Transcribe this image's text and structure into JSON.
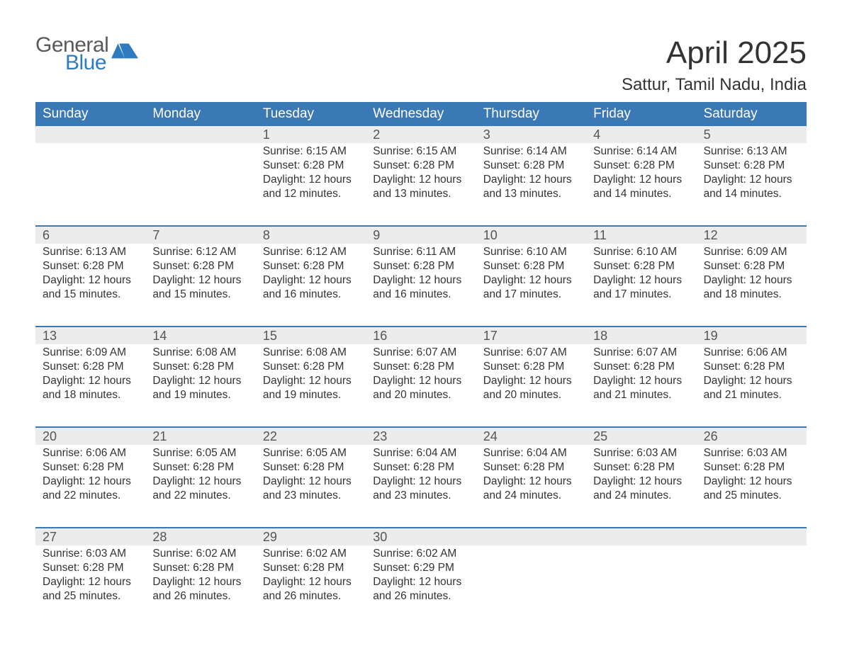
{
  "logo": {
    "general_text": "General",
    "general_color": "#5a5a5a",
    "blue_text": "Blue",
    "blue_color": "#2f7bbf",
    "flag_color": "#2f7bbf"
  },
  "title": "April 2025",
  "location": "Sattur, Tamil Nadu, India",
  "colors": {
    "header_bg": "#3b78b6",
    "header_text": "#ffffff",
    "daynum_bg": "#ececec",
    "week_border": "#3b78b6",
    "body_text": "#333333",
    "daynum_text": "#555555",
    "background": "#ffffff"
  },
  "typography": {
    "title_fontsize": 44,
    "location_fontsize": 24,
    "header_fontsize": 19,
    "daynum_fontsize": 18,
    "detail_fontsize": 15.5
  },
  "day_headers": [
    "Sunday",
    "Monday",
    "Tuesday",
    "Wednesday",
    "Thursday",
    "Friday",
    "Saturday"
  ],
  "weeks": [
    {
      "cells": [
        {
          "day": "",
          "sunrise": "",
          "sunset": "",
          "daylight1": "",
          "daylight2": ""
        },
        {
          "day": "",
          "sunrise": "",
          "sunset": "",
          "daylight1": "",
          "daylight2": ""
        },
        {
          "day": "1",
          "sunrise": "Sunrise: 6:15 AM",
          "sunset": "Sunset: 6:28 PM",
          "daylight1": "Daylight: 12 hours",
          "daylight2": "and 12 minutes."
        },
        {
          "day": "2",
          "sunrise": "Sunrise: 6:15 AM",
          "sunset": "Sunset: 6:28 PM",
          "daylight1": "Daylight: 12 hours",
          "daylight2": "and 13 minutes."
        },
        {
          "day": "3",
          "sunrise": "Sunrise: 6:14 AM",
          "sunset": "Sunset: 6:28 PM",
          "daylight1": "Daylight: 12 hours",
          "daylight2": "and 13 minutes."
        },
        {
          "day": "4",
          "sunrise": "Sunrise: 6:14 AM",
          "sunset": "Sunset: 6:28 PM",
          "daylight1": "Daylight: 12 hours",
          "daylight2": "and 14 minutes."
        },
        {
          "day": "5",
          "sunrise": "Sunrise: 6:13 AM",
          "sunset": "Sunset: 6:28 PM",
          "daylight1": "Daylight: 12 hours",
          "daylight2": "and 14 minutes."
        }
      ]
    },
    {
      "cells": [
        {
          "day": "6",
          "sunrise": "Sunrise: 6:13 AM",
          "sunset": "Sunset: 6:28 PM",
          "daylight1": "Daylight: 12 hours",
          "daylight2": "and 15 minutes."
        },
        {
          "day": "7",
          "sunrise": "Sunrise: 6:12 AM",
          "sunset": "Sunset: 6:28 PM",
          "daylight1": "Daylight: 12 hours",
          "daylight2": "and 15 minutes."
        },
        {
          "day": "8",
          "sunrise": "Sunrise: 6:12 AM",
          "sunset": "Sunset: 6:28 PM",
          "daylight1": "Daylight: 12 hours",
          "daylight2": "and 16 minutes."
        },
        {
          "day": "9",
          "sunrise": "Sunrise: 6:11 AM",
          "sunset": "Sunset: 6:28 PM",
          "daylight1": "Daylight: 12 hours",
          "daylight2": "and 16 minutes."
        },
        {
          "day": "10",
          "sunrise": "Sunrise: 6:10 AM",
          "sunset": "Sunset: 6:28 PM",
          "daylight1": "Daylight: 12 hours",
          "daylight2": "and 17 minutes."
        },
        {
          "day": "11",
          "sunrise": "Sunrise: 6:10 AM",
          "sunset": "Sunset: 6:28 PM",
          "daylight1": "Daylight: 12 hours",
          "daylight2": "and 17 minutes."
        },
        {
          "day": "12",
          "sunrise": "Sunrise: 6:09 AM",
          "sunset": "Sunset: 6:28 PM",
          "daylight1": "Daylight: 12 hours",
          "daylight2": "and 18 minutes."
        }
      ]
    },
    {
      "cells": [
        {
          "day": "13",
          "sunrise": "Sunrise: 6:09 AM",
          "sunset": "Sunset: 6:28 PM",
          "daylight1": "Daylight: 12 hours",
          "daylight2": "and 18 minutes."
        },
        {
          "day": "14",
          "sunrise": "Sunrise: 6:08 AM",
          "sunset": "Sunset: 6:28 PM",
          "daylight1": "Daylight: 12 hours",
          "daylight2": "and 19 minutes."
        },
        {
          "day": "15",
          "sunrise": "Sunrise: 6:08 AM",
          "sunset": "Sunset: 6:28 PM",
          "daylight1": "Daylight: 12 hours",
          "daylight2": "and 19 minutes."
        },
        {
          "day": "16",
          "sunrise": "Sunrise: 6:07 AM",
          "sunset": "Sunset: 6:28 PM",
          "daylight1": "Daylight: 12 hours",
          "daylight2": "and 20 minutes."
        },
        {
          "day": "17",
          "sunrise": "Sunrise: 6:07 AM",
          "sunset": "Sunset: 6:28 PM",
          "daylight1": "Daylight: 12 hours",
          "daylight2": "and 20 minutes."
        },
        {
          "day": "18",
          "sunrise": "Sunrise: 6:07 AM",
          "sunset": "Sunset: 6:28 PM",
          "daylight1": "Daylight: 12 hours",
          "daylight2": "and 21 minutes."
        },
        {
          "day": "19",
          "sunrise": "Sunrise: 6:06 AM",
          "sunset": "Sunset: 6:28 PM",
          "daylight1": "Daylight: 12 hours",
          "daylight2": "and 21 minutes."
        }
      ]
    },
    {
      "cells": [
        {
          "day": "20",
          "sunrise": "Sunrise: 6:06 AM",
          "sunset": "Sunset: 6:28 PM",
          "daylight1": "Daylight: 12 hours",
          "daylight2": "and 22 minutes."
        },
        {
          "day": "21",
          "sunrise": "Sunrise: 6:05 AM",
          "sunset": "Sunset: 6:28 PM",
          "daylight1": "Daylight: 12 hours",
          "daylight2": "and 22 minutes."
        },
        {
          "day": "22",
          "sunrise": "Sunrise: 6:05 AM",
          "sunset": "Sunset: 6:28 PM",
          "daylight1": "Daylight: 12 hours",
          "daylight2": "and 23 minutes."
        },
        {
          "day": "23",
          "sunrise": "Sunrise: 6:04 AM",
          "sunset": "Sunset: 6:28 PM",
          "daylight1": "Daylight: 12 hours",
          "daylight2": "and 23 minutes."
        },
        {
          "day": "24",
          "sunrise": "Sunrise: 6:04 AM",
          "sunset": "Sunset: 6:28 PM",
          "daylight1": "Daylight: 12 hours",
          "daylight2": "and 24 minutes."
        },
        {
          "day": "25",
          "sunrise": "Sunrise: 6:03 AM",
          "sunset": "Sunset: 6:28 PM",
          "daylight1": "Daylight: 12 hours",
          "daylight2": "and 24 minutes."
        },
        {
          "day": "26",
          "sunrise": "Sunrise: 6:03 AM",
          "sunset": "Sunset: 6:28 PM",
          "daylight1": "Daylight: 12 hours",
          "daylight2": "and 25 minutes."
        }
      ]
    },
    {
      "cells": [
        {
          "day": "27",
          "sunrise": "Sunrise: 6:03 AM",
          "sunset": "Sunset: 6:28 PM",
          "daylight1": "Daylight: 12 hours",
          "daylight2": "and 25 minutes."
        },
        {
          "day": "28",
          "sunrise": "Sunrise: 6:02 AM",
          "sunset": "Sunset: 6:28 PM",
          "daylight1": "Daylight: 12 hours",
          "daylight2": "and 26 minutes."
        },
        {
          "day": "29",
          "sunrise": "Sunrise: 6:02 AM",
          "sunset": "Sunset: 6:28 PM",
          "daylight1": "Daylight: 12 hours",
          "daylight2": "and 26 minutes."
        },
        {
          "day": "30",
          "sunrise": "Sunrise: 6:02 AM",
          "sunset": "Sunset: 6:29 PM",
          "daylight1": "Daylight: 12 hours",
          "daylight2": "and 26 minutes."
        },
        {
          "day": "",
          "sunrise": "",
          "sunset": "",
          "daylight1": "",
          "daylight2": ""
        },
        {
          "day": "",
          "sunrise": "",
          "sunset": "",
          "daylight1": "",
          "daylight2": ""
        },
        {
          "day": "",
          "sunrise": "",
          "sunset": "",
          "daylight1": "",
          "daylight2": ""
        }
      ]
    }
  ]
}
